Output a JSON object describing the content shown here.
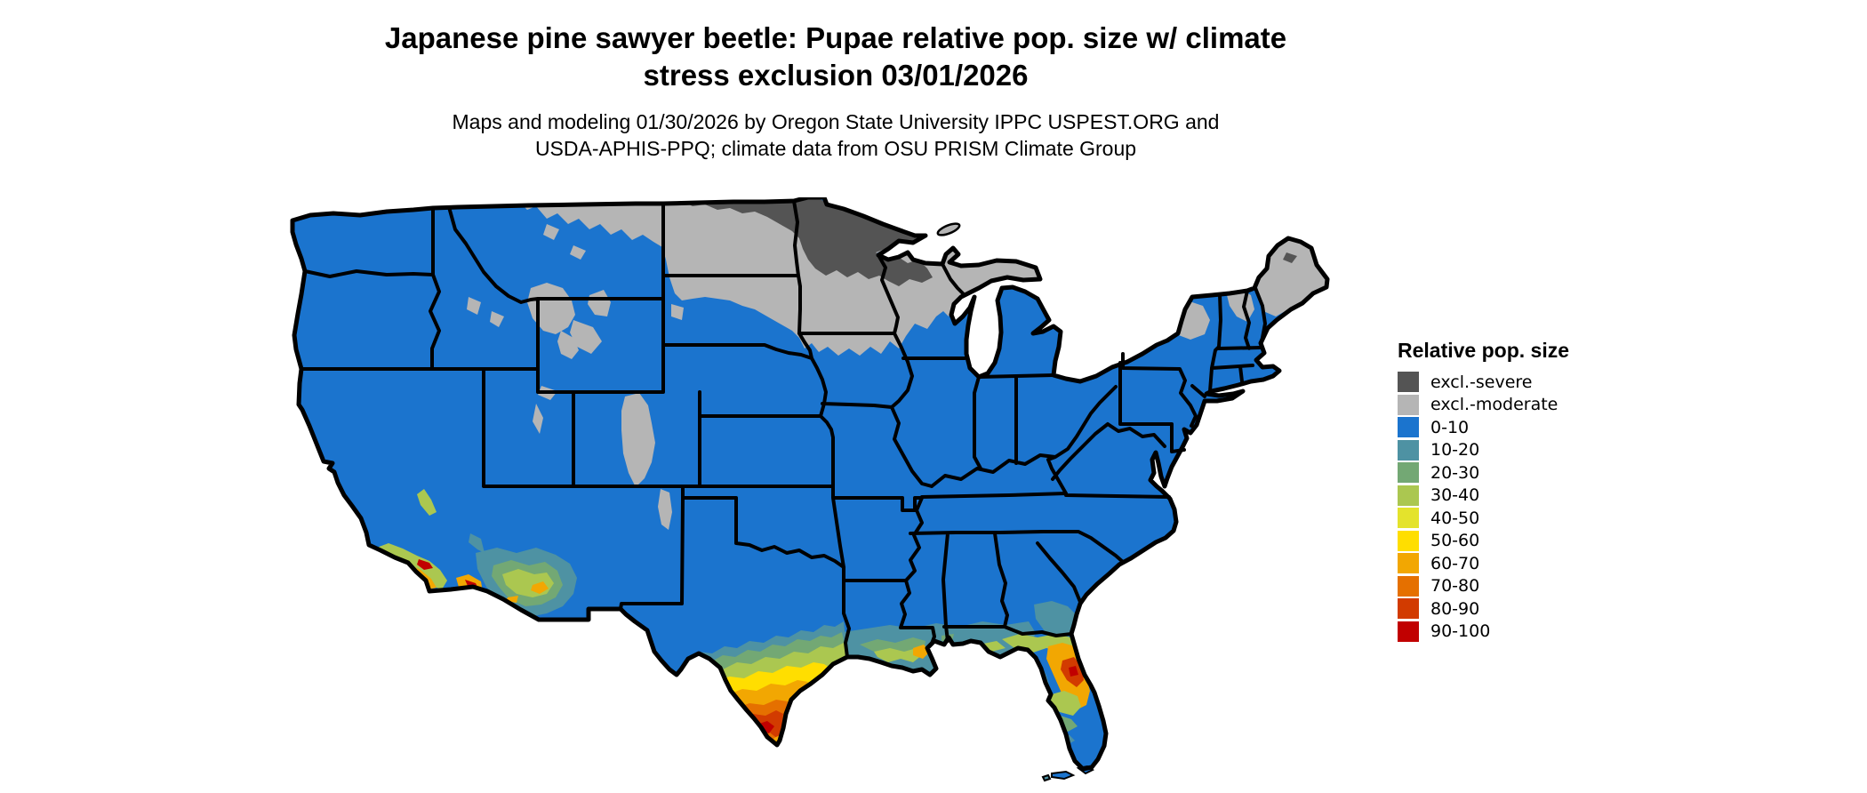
{
  "header": {
    "title": "Japanese pine sawyer beetle: Pupae relative pop. size w/ climate\nstress exclusion 03/01/2026",
    "subtitle": "Maps and modeling 01/30/2026 by Oregon State University IPPC USPEST.ORG and\nUSDA-APHIS-PPQ; climate data from OSU PRISM Climate Group"
  },
  "legend": {
    "title": "Relative pop. size",
    "items": [
      {
        "key": "sev",
        "label": "excl.-severe",
        "color": "#545454"
      },
      {
        "key": "mod",
        "label": "excl.-moderate",
        "color": "#B5B5B5"
      },
      {
        "key": "b0",
        "label": "0-10",
        "color": "#1B74CE"
      },
      {
        "key": "b10",
        "label": "10-20",
        "color": "#4E92A3"
      },
      {
        "key": "b20",
        "label": "20-30",
        "color": "#73A874"
      },
      {
        "key": "b30",
        "label": "30-40",
        "color": "#ABC750"
      },
      {
        "key": "b40",
        "label": "40-50",
        "color": "#E4E32C"
      },
      {
        "key": "b50",
        "label": "50-60",
        "color": "#FFDE00"
      },
      {
        "key": "b60",
        "label": "60-70",
        "color": "#F2A702"
      },
      {
        "key": "b70",
        "label": "70-80",
        "color": "#E57000"
      },
      {
        "key": "b80",
        "label": "80-90",
        "color": "#D23B00"
      },
      {
        "key": "b90",
        "label": "90-100",
        "color": "#C10000"
      }
    ]
  },
  "map": {
    "type": "choropleth-raster",
    "area": "Conterminous United States with state borders",
    "background_color": "#FFFFFF",
    "border_color": "#000000",
    "dominant_class": "0-10",
    "regions": [
      {
        "area": "Most of conterminous US",
        "class": "0-10"
      },
      {
        "area": "Northern Minnesota, northern North Dakota strip, northwest Wisconsin",
        "class": "excl.-severe"
      },
      {
        "area": "North Dakota, northern South Dakota, Minnesota, Wisconsin, Michigan UP, northern Montana border, Rocky Mountain ranges, Adirondacks, northern New England, most of Maine",
        "class": "excl.-moderate"
      },
      {
        "area": "South Texas gradient toward Rio Grande valley",
        "class": "10-20 through 90-100"
      },
      {
        "area": "Gulf coast Louisiana-Mississippi-Alabama",
        "class": "10-20 to 60-70"
      },
      {
        "area": "North-central Florida core",
        "class": "60-70 to 90-100"
      },
      {
        "area": "South Florida tip",
        "class": "back to 0-10"
      },
      {
        "area": "Southern California coast and Yuma area",
        "class": "30-40 to 90-100 spots"
      },
      {
        "area": "Southern Arizona",
        "class": "10-20 to 60-70 mottled"
      }
    ]
  }
}
